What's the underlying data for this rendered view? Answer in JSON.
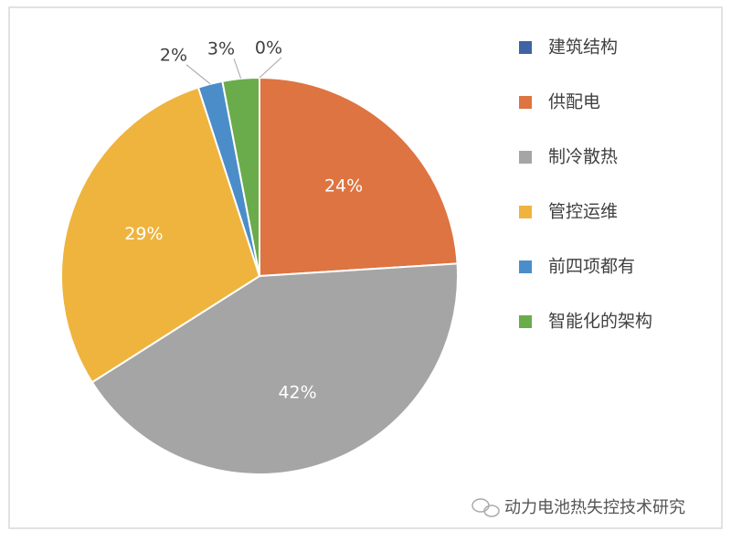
{
  "chart_data": {
    "type": "pie",
    "categories": [
      "建筑结构",
      "供配电",
      "制冷散热",
      "管控运维",
      "前四项都有",
      "智能化的架构"
    ],
    "values": [
      0,
      24,
      42,
      29,
      2,
      3
    ],
    "value_labels": [
      "0%",
      "24%",
      "42%",
      "29%",
      "2%",
      "3%"
    ],
    "colors": [
      "#3f63a5",
      "#dd7441",
      "#a5a5a5",
      "#efb43d",
      "#4b8dc9",
      "#6aab4b"
    ],
    "legend": "right"
  },
  "watermark": "动力电池热失控技术研究"
}
